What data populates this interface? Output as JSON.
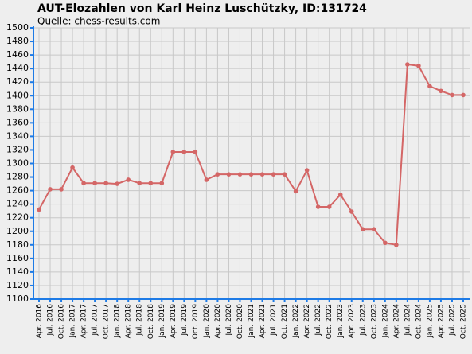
{
  "chart_data": {
    "type": "line",
    "title": "AUT-Elozahlen von Karl Heinz Luschützky, ID:131724",
    "subtitle": "Quelle: chess-results.com",
    "categories": [
      "Apr. 2016",
      "Jul. 2016",
      "Oct. 2016",
      "Jan. 2017",
      "Apr. 2017",
      "Jul. 2017",
      "Oct. 2017",
      "Jan. 2018",
      "Apr. 2018",
      "Jul. 2018",
      "Oct. 2018",
      "Jan. 2019",
      "Apr. 2019",
      "Jul. 2019",
      "Oct. 2019",
      "Jan. 2020",
      "Apr. 2020",
      "Jul. 2020",
      "Oct. 2020",
      "Jan. 2021",
      "Apr. 2021",
      "Jul. 2021",
      "Oct. 2021",
      "Jan. 2022",
      "Apr. 2022",
      "Jul. 2022",
      "Oct. 2022",
      "Jan. 2023",
      "Apr. 2023",
      "Jul. 2023",
      "Oct. 2023",
      "Jan. 2024",
      "Apr. 2024",
      "Jul. 2024",
      "Oct. 2024",
      "Jan. 2025",
      "Apr. 2025",
      "Jul. 2025",
      "Oct. 2025"
    ],
    "values": [
      1232,
      1262,
      1262,
      1294,
      1271,
      1271,
      1271,
      1270,
      1276,
      1271,
      1271,
      1271,
      1317,
      1317,
      1317,
      1276,
      1284,
      1284,
      1284,
      1284,
      1284,
      1284,
      1284,
      1259,
      1290,
      1236,
      1236,
      1254,
      1229,
      1203,
      1203,
      1183,
      1180,
      1446,
      1444,
      1414,
      1407,
      1401,
      1401
    ],
    "color": "#d46666",
    "ylim": [
      1100,
      1500
    ],
    "yticks": [
      1100,
      1120,
      1140,
      1160,
      1180,
      1200,
      1220,
      1240,
      1260,
      1280,
      1300,
      1320,
      1340,
      1360,
      1380,
      1400,
      1420,
      1440,
      1460,
      1480,
      1500
    ],
    "grid": true
  }
}
